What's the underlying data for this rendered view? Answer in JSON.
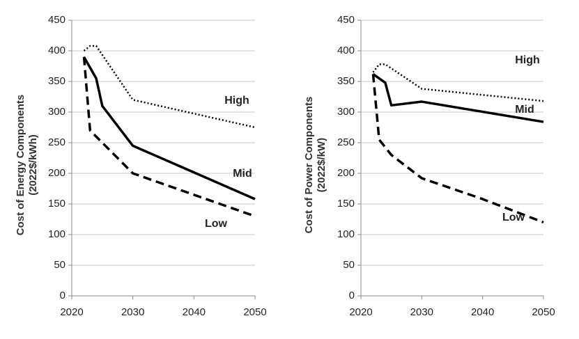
{
  "chart_data": [
    {
      "type": "line",
      "y_label": [
        "Cost of Energy Components",
        "(2022$/kWh)"
      ],
      "xlim": [
        2020,
        2050
      ],
      "xticks": [
        2020,
        2030,
        2040,
        2050
      ],
      "ylim": [
        0,
        450
      ],
      "yticks": [
        0,
        50,
        100,
        150,
        200,
        250,
        300,
        350,
        400,
        450
      ],
      "grid": true,
      "series": [
        {
          "name": "High",
          "color": "#000000",
          "style": "dotted",
          "x": [
            2022,
            2023,
            2024,
            2030,
            2050
          ],
          "values": [
            400,
            408,
            408,
            320,
            275
          ]
        },
        {
          "name": "Mid",
          "color": "#000000",
          "style": "solid",
          "x": [
            2022,
            2024,
            2025,
            2030,
            2050
          ],
          "values": [
            390,
            355,
            310,
            245,
            158
          ]
        },
        {
          "name": "Low",
          "color": "#000000",
          "style": "dashed",
          "x": [
            2022,
            2023,
            2025,
            2030,
            2040,
            2050
          ],
          "values": [
            390,
            270,
            250,
            200,
            165,
            130
          ]
        }
      ]
    },
    {
      "type": "line",
      "y_label": [
        "Cost of Power Components",
        "(2022$/kW)"
      ],
      "xlim": [
        2020,
        2050
      ],
      "xticks": [
        2020,
        2030,
        2040,
        2050
      ],
      "ylim": [
        0,
        450
      ],
      "yticks": [
        0,
        50,
        100,
        150,
        200,
        250,
        300,
        350,
        400,
        450
      ],
      "grid": true,
      "series": [
        {
          "name": "High",
          "color": "#000000",
          "style": "dotted",
          "x": [
            2022,
            2023,
            2024,
            2030,
            2050
          ],
          "values": [
            365,
            378,
            378,
            338,
            318
          ]
        },
        {
          "name": "Mid",
          "color": "#000000",
          "style": "solid",
          "x": [
            2022,
            2024,
            2025,
            2030,
            2050
          ],
          "values": [
            362,
            348,
            311,
            317,
            284
          ]
        },
        {
          "name": "Low",
          "color": "#000000",
          "style": "dashed",
          "x": [
            2022,
            2023,
            2025,
            2030,
            2040,
            2050
          ],
          "values": [
            362,
            255,
            230,
            192,
            158,
            120
          ]
        }
      ]
    }
  ]
}
